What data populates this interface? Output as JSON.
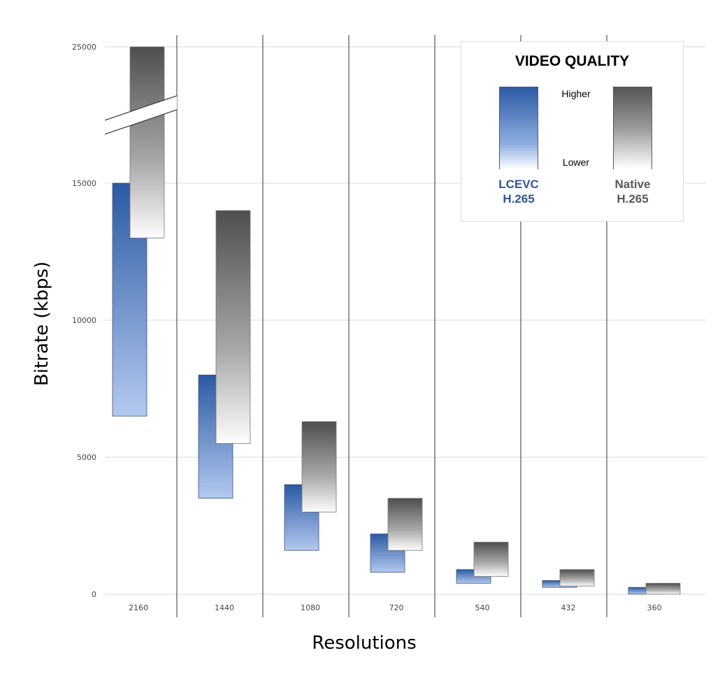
{
  "chart_data": {
    "type": "bar",
    "subtype": "floating-range",
    "xlabel": "Resolutions",
    "ylabel": "Bitrate (kbps)",
    "categories": [
      "2160",
      "1440",
      "1080",
      "720",
      "540",
      "432",
      "360"
    ],
    "yticks": [
      0,
      5000,
      10000,
      15000,
      25000
    ],
    "ylim": [
      0,
      25000
    ],
    "axis_break": "between 15000 and 25000",
    "grid": true,
    "series": [
      {
        "name": "LCEVC H.265",
        "color": "#2b5aa4",
        "ranges": [
          [
            6500,
            15000
          ],
          [
            3500,
            8000
          ],
          [
            1600,
            4000
          ],
          [
            800,
            2200
          ],
          [
            400,
            900
          ],
          [
            250,
            500
          ],
          [
            0,
            250
          ]
        ]
      },
      {
        "name": "Native H.265",
        "color": "#555555",
        "ranges": [
          [
            13000,
            25000
          ],
          [
            5500,
            14000
          ],
          [
            3000,
            6300
          ],
          [
            1600,
            3500
          ],
          [
            650,
            1900
          ],
          [
            300,
            900
          ],
          [
            0,
            400
          ]
        ]
      }
    ],
    "legend": {
      "title": "VIDEO QUALITY",
      "higher": "Higher",
      "lower": "Lower",
      "lcevc_line1": "LCEVC",
      "lcevc_line2": "H.265",
      "native_line1": "Native",
      "native_line2": "H.265",
      "placement": "top-right"
    }
  }
}
